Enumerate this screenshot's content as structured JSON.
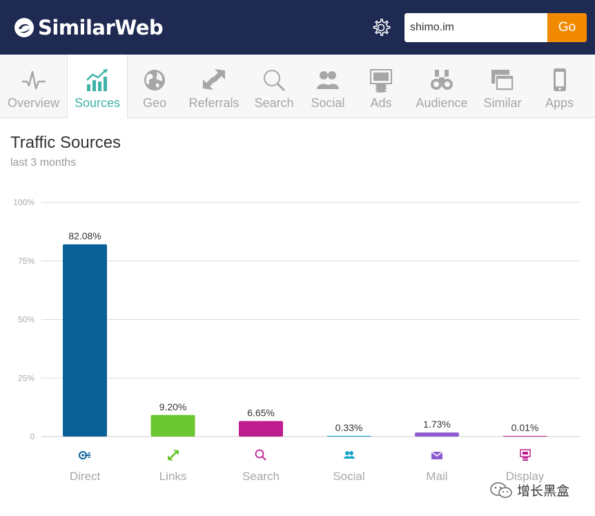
{
  "app": {
    "brand": "SimilarWeb"
  },
  "search": {
    "value": "shimo.im",
    "go_label": "Go"
  },
  "tabs": [
    {
      "label": "Overview",
      "icon": "pulse-icon",
      "active": false
    },
    {
      "label": "Sources",
      "icon": "bar-trend-icon",
      "active": true
    },
    {
      "label": "Geo",
      "icon": "globe-icon",
      "active": false
    },
    {
      "label": "Referrals",
      "icon": "arrows-icon",
      "active": false
    },
    {
      "label": "Search",
      "icon": "magnifier-icon",
      "active": false
    },
    {
      "label": "Social",
      "icon": "people-icon",
      "active": false
    },
    {
      "label": "Ads",
      "icon": "ads-icon",
      "active": false
    },
    {
      "label": "Audience",
      "icon": "binoculars-icon",
      "active": false
    },
    {
      "label": "Similar",
      "icon": "windows-icon",
      "active": false
    },
    {
      "label": "Apps",
      "icon": "phone-icon",
      "active": false
    }
  ],
  "section": {
    "title": "Traffic Sources",
    "subtitle": "last 3 months"
  },
  "chart_data": {
    "type": "bar",
    "categories": [
      "Direct",
      "Links",
      "Search",
      "Social",
      "Mail",
      "Display"
    ],
    "values": [
      82.08,
      9.2,
      6.65,
      0.33,
      1.73,
      0.01
    ],
    "value_labels": [
      "82.08%",
      "9.20%",
      "6.65%",
      "0.33%",
      "1.73%",
      "0.01%"
    ],
    "colors": [
      "#0b6197",
      "#6cc62f",
      "#be1d8e",
      "#18a7c9",
      "#8e5bcf",
      "#b81d8d"
    ],
    "category_icons": [
      "direct-icon",
      "links-icon",
      "search-icon",
      "social-icon",
      "mail-icon",
      "display-icon"
    ],
    "ytick_labels": [
      "0",
      "25%",
      "50%",
      "75%",
      "100%"
    ],
    "yticks": [
      0,
      25,
      50,
      75,
      100
    ],
    "ylim": [
      0,
      100
    ],
    "grid": true
  },
  "watermark": {
    "text": "增长黑盒"
  },
  "colors": {
    "header_bg": "#1f2a52",
    "accent": "#3fb3a8",
    "go_button": "#f18a00"
  }
}
